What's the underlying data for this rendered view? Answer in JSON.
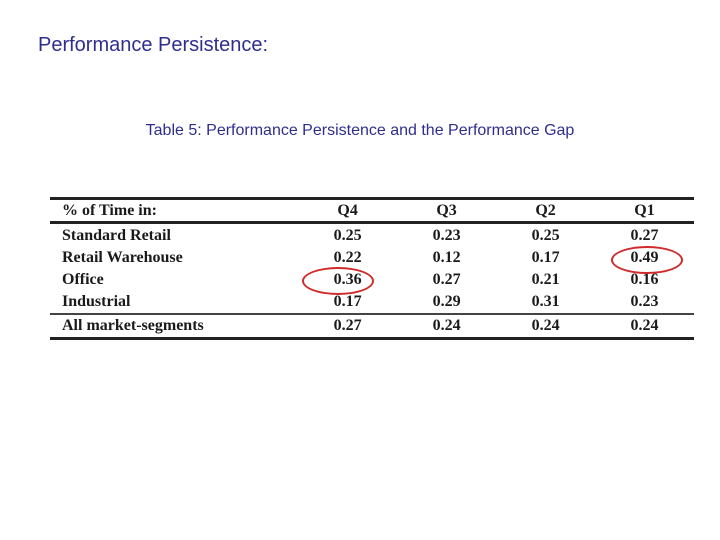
{
  "slide": {
    "title": "Performance Persistence:",
    "caption": "Table 5: Performance Persistence and the Performance Gap"
  },
  "table": {
    "header": {
      "label": "% of Time in:",
      "columns": [
        "Q4",
        "Q3",
        "Q2",
        "Q1"
      ]
    },
    "rows": [
      {
        "label": "Standard Retail",
        "values": [
          "0.25",
          "0.23",
          "0.25",
          "0.27"
        ]
      },
      {
        "label": "Retail Warehouse",
        "values": [
          "0.22",
          "0.12",
          "0.17",
          "0.49"
        ]
      },
      {
        "label": "Office",
        "values": [
          "0.36",
          "0.27",
          "0.21",
          "0.16"
        ]
      },
      {
        "label": "Industrial",
        "values": [
          "0.17",
          "0.29",
          "0.31",
          "0.23"
        ]
      }
    ],
    "summary": {
      "label": "All market-segments",
      "values": [
        "0.27",
        "0.24",
        "0.24",
        "0.24"
      ]
    }
  },
  "highlights": {
    "color": "#d12a2a",
    "cells": [
      "Retail Warehouse / Q1",
      "Office / Q4"
    ]
  }
}
